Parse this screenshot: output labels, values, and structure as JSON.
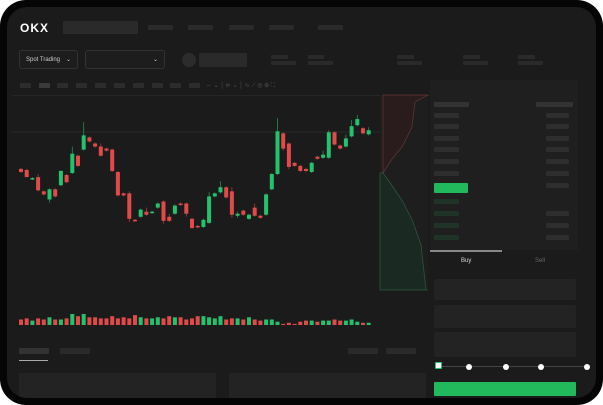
{
  "header": {
    "logo": "OKX"
  },
  "market_selector": {
    "label": "Spot Trading",
    "chevron": "chevron-down-icon"
  },
  "pair_selector": {
    "chevron": "chevron-down-icon"
  },
  "trade_form": {
    "tabs": [
      {
        "label": "Buy",
        "active": true
      },
      {
        "label": "Sell",
        "active": false
      }
    ],
    "slider_percent": 0,
    "submit_color": "#22b85c"
  },
  "colors": {
    "up": "#25c26e",
    "down": "#e04a4a",
    "background": "#1b1b1b",
    "accent": "#22b85c"
  },
  "chart_data": {
    "type": "candlestick",
    "fields": [
      "open",
      "high",
      "low",
      "close",
      "volume"
    ],
    "candles": [
      [
        60,
        61,
        56,
        57,
        5
      ],
      [
        59,
        60,
        52,
        52,
        6
      ],
      [
        50,
        52,
        49,
        51,
        4
      ],
      [
        52,
        55,
        38,
        39,
        6
      ],
      [
        38,
        39,
        34,
        35,
        5
      ],
      [
        30,
        41,
        27,
        40,
        7
      ],
      [
        40,
        41,
        32,
        33,
        5
      ],
      [
        44,
        59,
        43,
        58,
        5
      ],
      [
        54,
        55,
        46,
        47,
        6
      ],
      [
        56,
        82,
        55,
        75,
        10
      ],
      [
        73,
        74,
        62,
        63,
        8
      ],
      [
        79,
        106,
        78,
        93,
        10
      ],
      [
        91,
        92,
        86,
        87,
        7
      ],
      [
        85,
        86,
        81,
        82,
        7
      ],
      [
        82,
        85,
        72,
        73,
        6
      ],
      [
        80,
        81,
        77,
        78,
        6
      ],
      [
        79,
        80,
        57,
        58,
        8
      ],
      [
        57,
        58,
        33,
        34,
        6
      ],
      [
        36,
        37,
        33,
        34,
        7
      ],
      [
        36,
        38,
        8,
        11,
        6
      ],
      [
        10,
        11,
        8,
        9,
        9
      ],
      [
        13,
        21,
        12,
        20,
        7
      ],
      [
        18,
        22,
        14,
        15,
        6
      ],
      [
        17,
        19,
        16,
        18,
        6
      ],
      [
        22,
        27,
        21,
        26,
        7
      ],
      [
        28,
        29,
        6,
        9,
        6
      ],
      [
        13,
        16,
        8,
        9,
        8
      ],
      [
        16,
        25,
        15,
        24,
        7
      ],
      [
        26,
        27,
        24,
        25,
        7
      ],
      [
        26,
        27,
        13,
        16,
        5
      ],
      [
        11,
        12,
        1,
        2,
        6
      ],
      [
        4,
        5,
        2,
        3,
        8
      ],
      [
        3,
        11,
        2,
        10,
        8
      ],
      [
        7,
        37,
        6,
        33,
        7
      ],
      [
        33,
        37,
        32,
        36,
        6
      ],
      [
        37,
        48,
        36,
        42,
        8
      ],
      [
        42,
        43,
        31,
        32,
        5
      ],
      [
        38,
        42,
        12,
        15,
        6
      ],
      [
        14,
        18,
        12,
        16,
        6
      ],
      [
        19,
        20,
        14,
        15,
        5
      ],
      [
        11,
        16,
        10,
        15,
        7
      ],
      [
        22,
        26,
        13,
        14,
        5
      ],
      [
        14,
        15,
        11,
        12,
        4
      ],
      [
        15,
        36,
        14,
        35,
        5
      ],
      [
        40,
        56,
        39,
        55,
        5
      ],
      [
        55,
        110,
        54,
        97,
        3
      ],
      [
        95,
        96,
        78,
        80,
        1
      ],
      [
        85,
        86,
        60,
        62,
        2
      ],
      [
        66,
        67,
        62,
        63,
        1
      ],
      [
        63,
        64,
        57,
        58,
        3
      ],
      [
        60,
        61,
        57,
        58,
        4
      ],
      [
        57,
        67,
        56,
        66,
        4
      ],
      [
        72,
        73,
        69,
        70,
        3
      ],
      [
        71,
        78,
        70,
        74,
        4
      ],
      [
        71,
        98,
        70,
        96,
        4
      ],
      [
        96,
        97,
        83,
        84,
        5
      ],
      [
        83,
        84,
        79,
        80,
        4
      ],
      [
        82,
        94,
        81,
        90,
        4
      ],
      [
        92,
        108,
        91,
        102,
        5
      ],
      [
        103,
        113,
        102,
        109,
        3
      ],
      [
        100,
        101,
        94,
        95,
        2
      ],
      [
        94,
        101,
        93,
        98,
        2
      ]
    ]
  }
}
